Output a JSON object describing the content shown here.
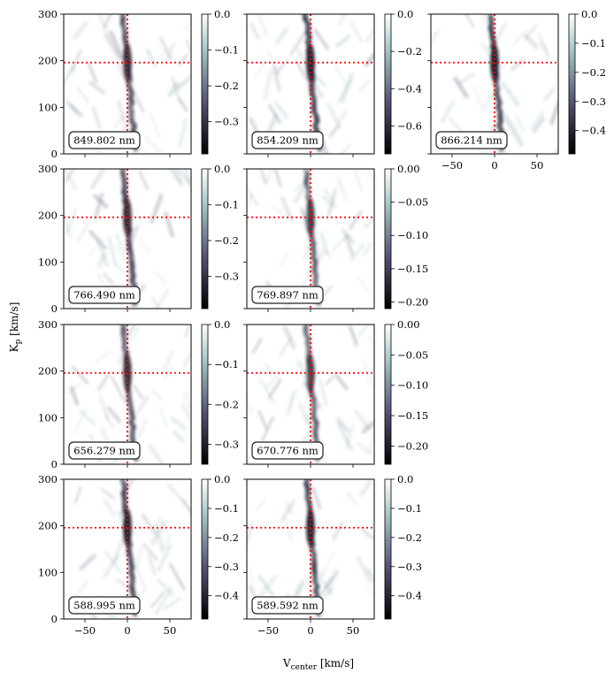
{
  "figure": {
    "ylabel": "K",
    "ylabel_sub": "p",
    "ylabel_unit": "[km/s]",
    "xlabel": "V",
    "xlabel_sub": "center",
    "xlabel_unit": "[km/s]"
  },
  "chart_data": {
    "type": "heatmap",
    "xlim": [
      -75,
      75
    ],
    "ylim": [
      0,
      300
    ],
    "xticks": [
      -50,
      0,
      50
    ],
    "yticks": [
      0,
      100,
      200,
      300
    ],
    "marker_vcenter": 0,
    "marker_kp": 196,
    "colormap": "bone",
    "panels": [
      {
        "label": "849.802 nm",
        "row": 0,
        "col": 0,
        "vmin": -0.39,
        "cbar_ticks": [
          0.0,
          -0.1,
          -0.2,
          -0.3
        ],
        "cbar_labels": [
          "0.0",
          "−0.1",
          "−0.2",
          "−0.3"
        ],
        "show_yticks": true,
        "show_xticks": false
      },
      {
        "label": "854.209 nm",
        "row": 0,
        "col": 1,
        "vmin": -0.75,
        "cbar_ticks": [
          0.0,
          -0.2,
          -0.4,
          -0.6
        ],
        "cbar_labels": [
          "0.0",
          "−0.2",
          "−0.4",
          "−0.6"
        ],
        "show_yticks": false,
        "show_xticks": false
      },
      {
        "label": "866.214 nm",
        "row": 0,
        "col": 2,
        "vmin": -0.48,
        "cbar_ticks": [
          0.0,
          -0.1,
          -0.2,
          -0.3,
          -0.4
        ],
        "cbar_labels": [
          "0.0",
          "−0.1",
          "−0.2",
          "−0.3",
          "−0.4"
        ],
        "show_yticks": false,
        "show_xticks": true
      },
      {
        "label": "766.490 nm",
        "row": 1,
        "col": 0,
        "vmin": -0.39,
        "cbar_ticks": [
          0.0,
          -0.1,
          -0.2,
          -0.3
        ],
        "cbar_labels": [
          "0.0",
          "−0.1",
          "−0.2",
          "−0.3"
        ],
        "show_yticks": true,
        "show_xticks": false
      },
      {
        "label": "769.897 nm",
        "row": 1,
        "col": 1,
        "vmin": -0.21,
        "cbar_ticks": [
          0.0,
          -0.05,
          -0.1,
          -0.15,
          -0.2
        ],
        "cbar_labels": [
          "0.00",
          "−0.05",
          "−0.10",
          "−0.15",
          "−0.20"
        ],
        "show_yticks": false,
        "show_xticks": false
      },
      {
        "label": "656.279 nm",
        "row": 2,
        "col": 0,
        "vmin": -0.35,
        "cbar_ticks": [
          0.0,
          -0.1,
          -0.2,
          -0.3
        ],
        "cbar_labels": [
          "0.0",
          "−0.1",
          "−0.2",
          "−0.3"
        ],
        "show_yticks": true,
        "show_xticks": false
      },
      {
        "label": "670.776 nm",
        "row": 2,
        "col": 1,
        "vmin": -0.23,
        "cbar_ticks": [
          0.0,
          -0.05,
          -0.1,
          -0.15,
          -0.2
        ],
        "cbar_labels": [
          "0.00",
          "−0.05",
          "−0.10",
          "−0.15",
          "−0.20"
        ],
        "show_yticks": false,
        "show_xticks": false
      },
      {
        "label": "588.995 nm",
        "row": 3,
        "col": 0,
        "vmin": -0.48,
        "cbar_ticks": [
          0.0,
          -0.1,
          -0.2,
          -0.3,
          -0.4
        ],
        "cbar_labels": [
          "0.0",
          "−0.1",
          "−0.2",
          "−0.3",
          "−0.4"
        ],
        "show_yticks": true,
        "show_xticks": true
      },
      {
        "label": "589.592 nm",
        "row": 3,
        "col": 1,
        "vmin": -0.48,
        "cbar_ticks": [
          0.0,
          -0.1,
          -0.2,
          -0.3,
          -0.4
        ],
        "cbar_labels": [
          "0.0",
          "−0.1",
          "−0.2",
          "−0.3",
          "−0.4"
        ],
        "show_yticks": false,
        "show_xticks": true
      }
    ]
  }
}
